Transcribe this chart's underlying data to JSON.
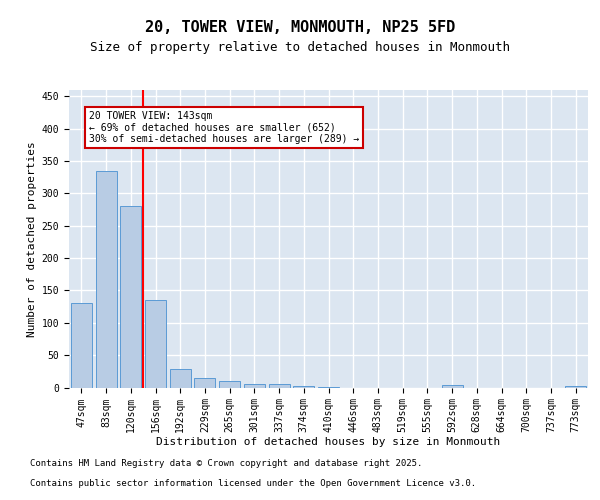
{
  "title_line1": "20, TOWER VIEW, MONMOUTH, NP25 5FD",
  "title_line2": "Size of property relative to detached houses in Monmouth",
  "xlabel": "Distribution of detached houses by size in Monmouth",
  "ylabel": "Number of detached properties",
  "categories": [
    "47sqm",
    "83sqm",
    "120sqm",
    "156sqm",
    "192sqm",
    "229sqm",
    "265sqm",
    "301sqm",
    "337sqm",
    "374sqm",
    "410sqm",
    "446sqm",
    "483sqm",
    "519sqm",
    "555sqm",
    "592sqm",
    "628sqm",
    "664sqm",
    "700sqm",
    "737sqm",
    "773sqm"
  ],
  "values": [
    130,
    335,
    280,
    135,
    28,
    15,
    10,
    6,
    5,
    2,
    1,
    0,
    0,
    0,
    0,
    4,
    0,
    0,
    0,
    0,
    3
  ],
  "bar_color": "#b8cce4",
  "bar_edge_color": "#5b9bd5",
  "background_color": "#dce6f1",
  "grid_color": "#ffffff",
  "annotation_text": "20 TOWER VIEW: 143sqm\n← 69% of detached houses are smaller (652)\n30% of semi-detached houses are larger (289) →",
  "annotation_edge_color": "#cc0000",
  "annotation_bg": "#ffffff",
  "red_line_x": 2.5,
  "ylim": [
    0,
    460
  ],
  "yticks": [
    0,
    50,
    100,
    150,
    200,
    250,
    300,
    350,
    400,
    450
  ],
  "footer_line1": "Contains HM Land Registry data © Crown copyright and database right 2025.",
  "footer_line2": "Contains public sector information licensed under the Open Government Licence v3.0.",
  "title_fontsize": 11,
  "subtitle_fontsize": 9,
  "axis_label_fontsize": 8,
  "tick_fontsize": 7,
  "annot_fontsize": 7,
  "footer_fontsize": 6.5
}
